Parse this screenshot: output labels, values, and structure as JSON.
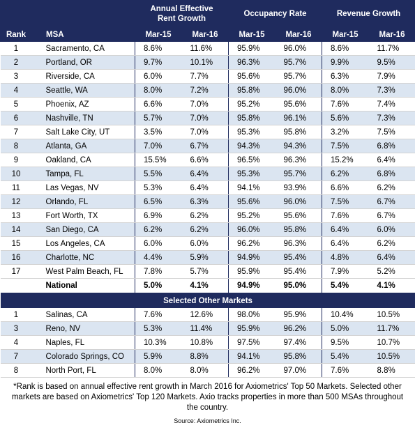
{
  "headers": {
    "group1": "Annual Effective Rent Growth",
    "group1_line1": "Annual Effective",
    "group1_line2": "Rent Growth",
    "group2": "Occupancy Rate",
    "group3": "Revenue Growth",
    "rank": "Rank",
    "msa": "MSA",
    "m15": "Mar-15",
    "m16": "Mar-16"
  },
  "top_markets": [
    {
      "rank": "1",
      "msa": "Sacramento, CA",
      "rent15": "8.6%",
      "rent16": "11.6%",
      "occ15": "95.9%",
      "occ16": "96.0%",
      "rev15": "8.6%",
      "rev16": "11.7%"
    },
    {
      "rank": "2",
      "msa": "Portland, OR",
      "rent15": "9.7%",
      "rent16": "10.1%",
      "occ15": "96.3%",
      "occ16": "95.7%",
      "rev15": "9.9%",
      "rev16": "9.5%"
    },
    {
      "rank": "3",
      "msa": "Riverside, CA",
      "rent15": "6.0%",
      "rent16": "7.7%",
      "occ15": "95.6%",
      "occ16": "95.7%",
      "rev15": "6.3%",
      "rev16": "7.9%"
    },
    {
      "rank": "4",
      "msa": "Seattle, WA",
      "rent15": "8.0%",
      "rent16": "7.2%",
      "occ15": "95.8%",
      "occ16": "96.0%",
      "rev15": "8.0%",
      "rev16": "7.3%"
    },
    {
      "rank": "5",
      "msa": "Phoenix, AZ",
      "rent15": "6.6%",
      "rent16": "7.0%",
      "occ15": "95.2%",
      "occ16": "95.6%",
      "rev15": "7.6%",
      "rev16": "7.4%"
    },
    {
      "rank": "6",
      "msa": "Nashville, TN",
      "rent15": "5.7%",
      "rent16": "7.0%",
      "occ15": "95.8%",
      "occ16": "96.1%",
      "rev15": "5.6%",
      "rev16": "7.3%"
    },
    {
      "rank": "7",
      "msa": "Salt Lake City, UT",
      "rent15": "3.5%",
      "rent16": "7.0%",
      "occ15": "95.3%",
      "occ16": "95.8%",
      "rev15": "3.2%",
      "rev16": "7.5%"
    },
    {
      "rank": "8",
      "msa": "Atlanta, GA",
      "rent15": "7.0%",
      "rent16": "6.7%",
      "occ15": "94.3%",
      "occ16": "94.3%",
      "rev15": "7.5%",
      "rev16": "6.8%"
    },
    {
      "rank": "9",
      "msa": "Oakland, CA",
      "rent15": "15.5%",
      "rent16": "6.6%",
      "occ15": "96.5%",
      "occ16": "96.3%",
      "rev15": "15.2%",
      "rev16": "6.4%"
    },
    {
      "rank": "10",
      "msa": "Tampa, FL",
      "rent15": "5.5%",
      "rent16": "6.4%",
      "occ15": "95.3%",
      "occ16": "95.7%",
      "rev15": "6.2%",
      "rev16": "6.8%"
    },
    {
      "rank": "11",
      "msa": "Las Vegas, NV",
      "rent15": "5.3%",
      "rent16": "6.4%",
      "occ15": "94.1%",
      "occ16": "93.9%",
      "rev15": "6.6%",
      "rev16": "6.2%"
    },
    {
      "rank": "12",
      "msa": "Orlando, FL",
      "rent15": "6.5%",
      "rent16": "6.3%",
      "occ15": "95.6%",
      "occ16": "96.0%",
      "rev15": "7.5%",
      "rev16": "6.7%"
    },
    {
      "rank": "13",
      "msa": "Fort Worth, TX",
      "rent15": "6.9%",
      "rent16": "6.2%",
      "occ15": "95.2%",
      "occ16": "95.6%",
      "rev15": "7.6%",
      "rev16": "6.7%"
    },
    {
      "rank": "14",
      "msa": "San Diego, CA",
      "rent15": "6.2%",
      "rent16": "6.2%",
      "occ15": "96.0%",
      "occ16": "95.8%",
      "rev15": "6.4%",
      "rev16": "6.0%"
    },
    {
      "rank": "15",
      "msa": "Los Angeles, CA",
      "rent15": "6.0%",
      "rent16": "6.0%",
      "occ15": "96.2%",
      "occ16": "96.3%",
      "rev15": "6.4%",
      "rev16": "6.2%"
    },
    {
      "rank": "16",
      "msa": "Charlotte, NC",
      "rent15": "4.4%",
      "rent16": "5.9%",
      "occ15": "94.9%",
      "occ16": "95.4%",
      "rev15": "4.8%",
      "rev16": "6.4%"
    },
    {
      "rank": "17",
      "msa": "West Palm Beach, FL",
      "rent15": "7.8%",
      "rent16": "5.7%",
      "occ15": "95.9%",
      "occ16": "95.4%",
      "rev15": "7.9%",
      "rev16": "5.2%"
    }
  ],
  "national": {
    "rank": "",
    "msa": "National",
    "rent15": "5.0%",
    "rent16": "4.1%",
    "occ15": "94.9%",
    "occ16": "95.0%",
    "rev15": "5.4%",
    "rev16": "4.1%"
  },
  "section_title": "Selected Other Markets",
  "other_markets": [
    {
      "rank": "1",
      "msa": "Salinas, CA",
      "rent15": "7.6%",
      "rent16": "12.6%",
      "occ15": "98.0%",
      "occ16": "95.9%",
      "rev15": "10.4%",
      "rev16": "10.5%"
    },
    {
      "rank": "3",
      "msa": "Reno, NV",
      "rent15": "5.3%",
      "rent16": "11.4%",
      "occ15": "95.9%",
      "occ16": "96.2%",
      "rev15": "5.0%",
      "rev16": "11.7%"
    },
    {
      "rank": "4",
      "msa": "Naples, FL",
      "rent15": "10.3%",
      "rent16": "10.8%",
      "occ15": "97.5%",
      "occ16": "97.4%",
      "rev15": "9.5%",
      "rev16": "10.7%"
    },
    {
      "rank": "7",
      "msa": "Colorado Springs, CO",
      "rent15": "5.9%",
      "rent16": "8.8%",
      "occ15": "94.1%",
      "occ16": "95.8%",
      "rev15": "5.4%",
      "rev16": "10.5%"
    },
    {
      "rank": "8",
      "msa": "North Port, FL",
      "rent15": "8.0%",
      "rent16": "8.0%",
      "occ15": "96.2%",
      "occ16": "97.0%",
      "rev15": "7.6%",
      "rev16": "8.8%"
    }
  ],
  "footnote": "*Rank is based on annual effective rent growth in March 2016 for Axiometrics' Top 50 Markets. Selected other markets are based on Axiometrics' Top 120 Markets. Axio tracks properties in more than 500 MSAs throughout the country.",
  "source": "Source: Axiometrics Inc.",
  "colors": {
    "header_bg": "#1f2b5e",
    "alt_row": "#dbe5f1"
  }
}
